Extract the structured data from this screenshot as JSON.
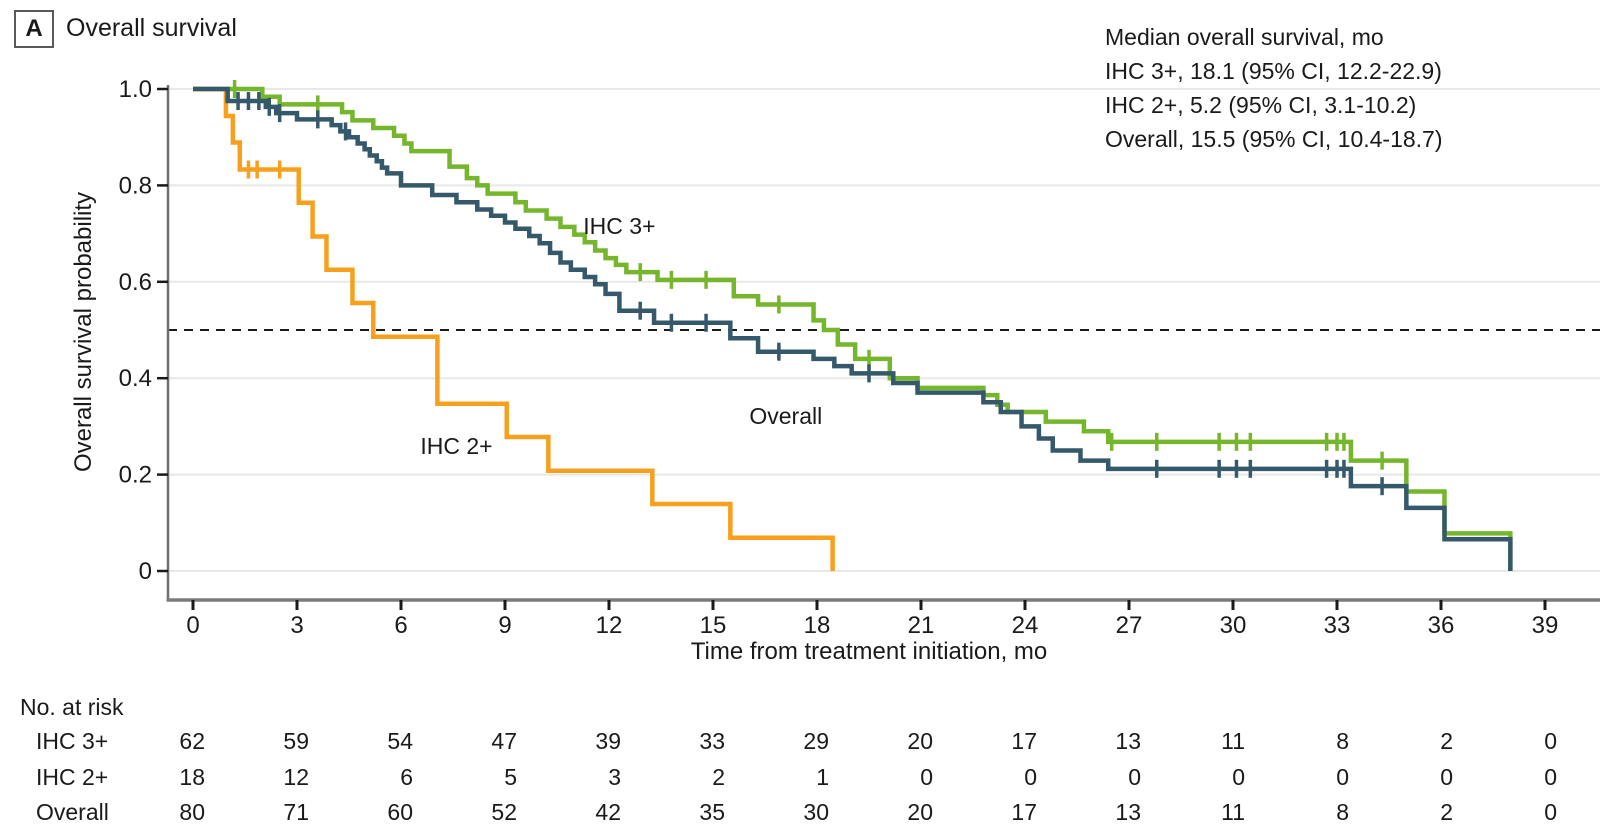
{
  "panel": {
    "label": "A",
    "title": "Overall survival"
  },
  "legend": {
    "lines": [
      "Median overall survival, mo",
      "IHC 3+, 18.1 (95% CI, 12.2-22.9)",
      "IHC 2+, 5.2 (95% CI, 3.1-10.2)",
      "Overall, 15.5 (95% CI, 10.4-18.7)"
    ]
  },
  "chart_data": {
    "type": "line",
    "subtype": "kaplan-meier-step",
    "title": "Overall survival",
    "xlabel": "Time from treatment initiation, mo",
    "ylabel": "Overall survival probability",
    "xlim": [
      0,
      39
    ],
    "ylim": [
      0,
      1.0
    ],
    "x_ticks": [
      0,
      3,
      6,
      9,
      12,
      15,
      18,
      21,
      24,
      27,
      30,
      33,
      36,
      39
    ],
    "y_ticks": [
      "1.0",
      "0.8",
      "0.6",
      "0.4",
      "0.2",
      "0"
    ],
    "y_tick_values": [
      1.0,
      0.8,
      0.6,
      0.4,
      0.2,
      0
    ],
    "grid": true,
    "median_reference_line_y": 0.5,
    "series": [
      {
        "name": "IHC 3+",
        "color": "#76B62D",
        "label": {
          "text": "IHC 3+",
          "x_month": 12.3,
          "y_prob": 0.716
        },
        "steps": [
          [
            0,
            1
          ],
          [
            2,
            0.984
          ],
          [
            2.5,
            0.968
          ],
          [
            4.3,
            0.952
          ],
          [
            4.6,
            0.935
          ],
          [
            5.2,
            0.919
          ],
          [
            5.8,
            0.903
          ],
          [
            6.1,
            0.887
          ],
          [
            6.3,
            0.871
          ],
          [
            7.4,
            0.839
          ],
          [
            7.9,
            0.815
          ],
          [
            8.2,
            0.8
          ],
          [
            8.5,
            0.783
          ],
          [
            9.3,
            0.765
          ],
          [
            9.6,
            0.748
          ],
          [
            10.2,
            0.731
          ],
          [
            10.6,
            0.714
          ],
          [
            11,
            0.698
          ],
          [
            11.3,
            0.682
          ],
          [
            11.6,
            0.665
          ],
          [
            11.9,
            0.649
          ],
          [
            12.2,
            0.635
          ],
          [
            12.5,
            0.62
          ],
          [
            13.4,
            0.604
          ],
          [
            15.6,
            0.57
          ],
          [
            16.3,
            0.553
          ],
          [
            17.9,
            0.52
          ],
          [
            18.2,
            0.5
          ],
          [
            18.6,
            0.47
          ],
          [
            19.1,
            0.44
          ],
          [
            20.1,
            0.4
          ],
          [
            20.9,
            0.38
          ],
          [
            22.8,
            0.365
          ],
          [
            23.2,
            0.345
          ],
          [
            23.5,
            0.33
          ],
          [
            24.6,
            0.31
          ],
          [
            25.7,
            0.29
          ],
          [
            26.4,
            0.268
          ],
          [
            33.4,
            0.229
          ],
          [
            35,
            0.165
          ],
          [
            36.1,
            0.078
          ],
          [
            38,
            0
          ]
        ],
        "censors": [
          [
            1.2,
            1
          ],
          [
            3.6,
            0.968
          ],
          [
            12.9,
            0.62
          ],
          [
            13.8,
            0.604
          ],
          [
            14.8,
            0.604
          ],
          [
            16.9,
            0.553
          ],
          [
            19.5,
            0.44
          ],
          [
            26.5,
            0.268
          ],
          [
            27.8,
            0.268
          ],
          [
            29.6,
            0.268
          ],
          [
            30.1,
            0.268
          ],
          [
            30.5,
            0.268
          ],
          [
            32.7,
            0.268
          ],
          [
            33,
            0.268
          ],
          [
            33.2,
            0.268
          ],
          [
            34.3,
            0.229
          ]
        ]
      },
      {
        "name": "IHC 2+",
        "color": "#F6A01E",
        "label": {
          "text": "IHC 2+",
          "x_month": 7.6,
          "y_prob": 0.259
        },
        "steps": [
          [
            0,
            1
          ],
          [
            0.95,
            0.944
          ],
          [
            1.15,
            0.889
          ],
          [
            1.35,
            0.833
          ],
          [
            3.05,
            0.764
          ],
          [
            3.45,
            0.694
          ],
          [
            3.85,
            0.625
          ],
          [
            4.6,
            0.556
          ],
          [
            5.2,
            0.486
          ],
          [
            7.05,
            0.347
          ],
          [
            9.05,
            0.278
          ],
          [
            10.25,
            0.208
          ],
          [
            13.25,
            0.139
          ],
          [
            15.5,
            0.069
          ],
          [
            18.45,
            0
          ]
        ],
        "censors": [
          [
            1.6,
            0.833
          ],
          [
            1.85,
            0.833
          ],
          [
            2.5,
            0.833
          ]
        ]
      },
      {
        "name": "Overall",
        "color": "#35596B",
        "label": {
          "text": "Overall",
          "x_month": 17.1,
          "y_prob": 0.322
        },
        "steps": [
          [
            0,
            1
          ],
          [
            1,
            0.975
          ],
          [
            2.1,
            0.963
          ],
          [
            2.4,
            0.95
          ],
          [
            3,
            0.937
          ],
          [
            4,
            0.925
          ],
          [
            4.25,
            0.912
          ],
          [
            4.5,
            0.9
          ],
          [
            4.75,
            0.887
          ],
          [
            4.95,
            0.875
          ],
          [
            5.1,
            0.862
          ],
          [
            5.3,
            0.85
          ],
          [
            5.45,
            0.837
          ],
          [
            5.6,
            0.825
          ],
          [
            6,
            0.8
          ],
          [
            6.9,
            0.78
          ],
          [
            7.6,
            0.765
          ],
          [
            8.2,
            0.75
          ],
          [
            8.6,
            0.737
          ],
          [
            9,
            0.723
          ],
          [
            9.3,
            0.71
          ],
          [
            9.7,
            0.695
          ],
          [
            10,
            0.68
          ],
          [
            10.3,
            0.66
          ],
          [
            10.6,
            0.64
          ],
          [
            10.9,
            0.625
          ],
          [
            11.3,
            0.61
          ],
          [
            11.6,
            0.595
          ],
          [
            11.9,
            0.575
          ],
          [
            12.3,
            0.54
          ],
          [
            13.3,
            0.515
          ],
          [
            15.5,
            0.483
          ],
          [
            16.3,
            0.455
          ],
          [
            17.9,
            0.44
          ],
          [
            18.5,
            0.425
          ],
          [
            19,
            0.41
          ],
          [
            20.2,
            0.39
          ],
          [
            20.9,
            0.37
          ],
          [
            22.8,
            0.35
          ],
          [
            23.3,
            0.33
          ],
          [
            23.9,
            0.3
          ],
          [
            24.4,
            0.275
          ],
          [
            24.8,
            0.25
          ],
          [
            25.6,
            0.229
          ],
          [
            26.4,
            0.212
          ],
          [
            33.4,
            0.176
          ],
          [
            35,
            0.131
          ],
          [
            36.1,
            0.066
          ],
          [
            38,
            0
          ]
        ],
        "censors": [
          [
            1.3,
            0.975
          ],
          [
            1.6,
            0.975
          ],
          [
            1.9,
            0.975
          ],
          [
            2.2,
            0.963
          ],
          [
            2.5,
            0.95
          ],
          [
            3.6,
            0.937
          ],
          [
            4.4,
            0.912
          ],
          [
            12.9,
            0.54
          ],
          [
            13.8,
            0.515
          ],
          [
            14.8,
            0.515
          ],
          [
            16.9,
            0.455
          ],
          [
            19.5,
            0.41
          ],
          [
            27.8,
            0.212
          ],
          [
            29.6,
            0.212
          ],
          [
            30.1,
            0.212
          ],
          [
            30.5,
            0.212
          ],
          [
            32.7,
            0.212
          ],
          [
            33,
            0.212
          ],
          [
            33.2,
            0.212
          ],
          [
            34.3,
            0.176
          ]
        ]
      }
    ]
  },
  "risk_table": {
    "title": "No. at risk",
    "time_points": [
      0,
      3,
      6,
      9,
      12,
      15,
      18,
      21,
      24,
      27,
      30,
      33,
      36,
      39
    ],
    "rows": [
      {
        "label": "IHC 3+",
        "values": [
          62,
          59,
          54,
          47,
          39,
          33,
          29,
          20,
          17,
          13,
          11,
          8,
          2,
          0
        ]
      },
      {
        "label": "IHC 2+",
        "values": [
          18,
          12,
          6,
          5,
          3,
          2,
          1,
          0,
          0,
          0,
          0,
          0,
          0,
          0
        ]
      },
      {
        "label": "Overall",
        "values": [
          80,
          71,
          60,
          52,
          42,
          35,
          30,
          20,
          17,
          13,
          11,
          8,
          2,
          0
        ]
      }
    ]
  },
  "colors": {
    "ihc3": "#76B62D",
    "ihc2": "#F6A01E",
    "overall": "#35596B",
    "grid": "#E8E8E8",
    "axis": "#7B7C7E",
    "text": "#1A1A1A"
  }
}
